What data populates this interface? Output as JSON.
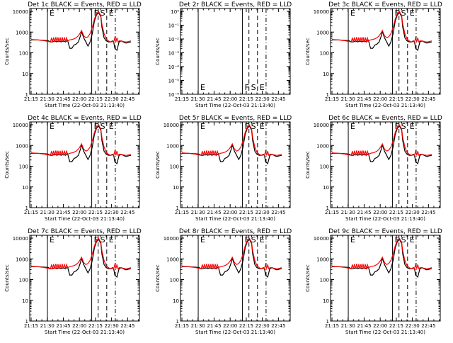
{
  "chart_data": [
    {
      "type": "line",
      "title": "Det 1c BLACK = Events, RED = LLD",
      "ylabel": "Counts/sec",
      "xlabel": "Start Time (22-Oct-03 21:13:40)",
      "has_data": true,
      "markers": [
        "E",
        "F",
        "S",
        "E"
      ]
    },
    {
      "type": "line",
      "title": "Det 2r BLACK = Events, RED = LLD",
      "ylabel": "Counts/sec",
      "xlabel": "Start Time (22-Oct-03 21:13:40)",
      "has_data": false,
      "markers": [
        "E",
        "F",
        "S",
        "E"
      ],
      "yticks": [
        "10⁻⁶",
        "10⁻⁵",
        "10⁻⁴",
        "10⁻³",
        "10⁻²",
        "10⁻¹",
        "10⁰"
      ]
    },
    {
      "type": "line",
      "title": "Det 3c BLACK = Events, RED = LLD",
      "ylabel": "Counts/sec",
      "xlabel": "Start Time (22-Oct-03 21:13:40)",
      "has_data": true,
      "markers": [
        "E",
        "F",
        "S",
        "E"
      ]
    },
    {
      "type": "line",
      "title": "Det 4c BLACK = Events, RED = LLD",
      "ylabel": "Counts/sec",
      "xlabel": "Start Time (22-Oct-03 21:13:40)",
      "has_data": true,
      "markers": [
        "E",
        "F",
        "S",
        "E"
      ]
    },
    {
      "type": "line",
      "title": "Det 5r BLACK = Events, RED = LLD",
      "ylabel": "Counts/sec",
      "xlabel": "Start Time (22-Oct-03 21:13:40)",
      "has_data": true,
      "markers": [
        "E",
        "F",
        "S",
        "E"
      ]
    },
    {
      "type": "line",
      "title": "Det 6c BLACK = Events, RED = LLD",
      "ylabel": "Counts/sec",
      "xlabel": "Start Time (22-Oct-03 21:13:40)",
      "has_data": true,
      "markers": [
        "E",
        "F",
        "S",
        "E"
      ]
    },
    {
      "type": "line",
      "title": "Det 7c BLACK = Events, RED = LLD",
      "ylabel": "Counts/sec",
      "xlabel": "Start Time (22-Oct-03 21:13:40)",
      "has_data": true,
      "markers": [
        "E",
        "F",
        "S",
        "E"
      ]
    },
    {
      "type": "line",
      "title": "Det 8r BLACK = Events, RED = LLD",
      "ylabel": "Counts/sec",
      "xlabel": "Start Time (22-Oct-03 21:13:40)",
      "has_data": true,
      "markers": [
        "E",
        "F",
        "S",
        "E"
      ]
    },
    {
      "type": "line",
      "title": "Det 9c BLACK = Events, RED = LLD",
      "ylabel": "Counts/sec",
      "xlabel": "Start Time (22-Oct-03 21:13:40)",
      "has_data": true,
      "markers": [
        "E",
        "F",
        "S",
        "E"
      ]
    }
  ],
  "shared": {
    "xticks": [
      "21:15",
      "21:30",
      "21:45",
      "22:00",
      "22:15",
      "22:30",
      "22:45"
    ],
    "xtick_minutes": [
      15,
      30,
      45,
      60,
      75,
      90,
      105
    ],
    "xrange_minutes": [
      13.67,
      116
    ],
    "yticks": [
      "1",
      "10",
      "100",
      "1000",
      "10000"
    ],
    "yrange_log10": [
      0,
      4.1
    ],
    "vlines": [
      {
        "label": "E",
        "minute": 30.2,
        "style": "solid"
      },
      {
        "label": "F",
        "minute": 71.5,
        "style": "solid"
      },
      {
        "label": "S",
        "minute": 77.5,
        "style": "dashed"
      },
      {
        "label": "E",
        "minute": 85.5,
        "style": "dashed"
      },
      {
        "label": "",
        "minute": 93.5,
        "style": "dashdot"
      }
    ],
    "series": {
      "events": {
        "name": "Events",
        "color": "#000000",
        "x": [
          15,
          21,
          27,
          31,
          33,
          35,
          37,
          39,
          41,
          43,
          45,
          47,
          49,
          51,
          53,
          55,
          57,
          59,
          61,
          62,
          64,
          66,
          68,
          70,
          72,
          74,
          76,
          78,
          80,
          81,
          83,
          85,
          87,
          89,
          91,
          92,
          93,
          95,
          97,
          99,
          101,
          103,
          104,
          106,
          108
        ],
        "log_y": [
          2.6,
          2.6,
          2.58,
          2.56,
          2.5,
          2.5,
          2.55,
          2.5,
          2.55,
          2.5,
          2.55,
          2.5,
          2.58,
          2.2,
          2.2,
          2.35,
          2.4,
          2.5,
          2.8,
          3.0,
          2.7,
          2.5,
          2.3,
          2.5,
          2.9,
          3.5,
          3.8,
          3.9,
          3.7,
          3.2,
          2.7,
          2.55,
          2.5,
          2.5,
          2.55,
          2.5,
          2.2,
          2.1,
          2.5,
          2.55,
          2.5,
          2.45,
          2.45,
          2.48,
          2.5
        ]
      },
      "lld": {
        "name": "LLD",
        "color": "#ff0000",
        "x": [
          15,
          21,
          27,
          31,
          33,
          34,
          35,
          36,
          37,
          38,
          39,
          40,
          41,
          42,
          43,
          44,
          45,
          46,
          47,
          48,
          49,
          51,
          53,
          55,
          57,
          59,
          61,
          62,
          64,
          66,
          68,
          70,
          72,
          74,
          76,
          78,
          80,
          81,
          83,
          85,
          87,
          89,
          91,
          92,
          93,
          94,
          95,
          96,
          97,
          99,
          101,
          103,
          104,
          106,
          108
        ],
        "log_y": [
          2.62,
          2.6,
          2.56,
          2.52,
          2.5,
          2.7,
          2.5,
          2.72,
          2.5,
          2.73,
          2.5,
          2.72,
          2.5,
          2.72,
          2.5,
          2.73,
          2.5,
          2.72,
          2.52,
          2.7,
          2.55,
          2.6,
          2.62,
          2.65,
          2.7,
          2.8,
          2.95,
          3.05,
          2.8,
          2.7,
          2.75,
          2.9,
          3.2,
          3.6,
          3.85,
          3.95,
          3.75,
          3.35,
          2.9,
          2.65,
          2.55,
          2.5,
          2.52,
          2.5,
          2.7,
          2.5,
          2.7,
          2.5,
          2.55,
          2.55,
          2.52,
          2.5,
          2.5,
          2.52,
          2.55
        ]
      }
    }
  }
}
